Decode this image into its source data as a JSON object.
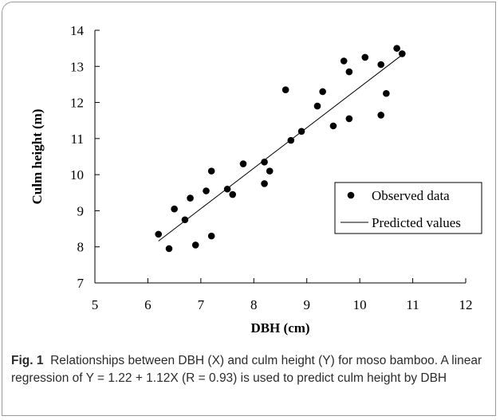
{
  "chart_data": {
    "type": "scatter",
    "title": "",
    "xlabel": "DBH (cm)",
    "ylabel": "Culm height (m)",
    "xlim": [
      5,
      12
    ],
    "ylim": [
      7,
      14
    ],
    "x_ticks": [
      5,
      6,
      7,
      8,
      9,
      10,
      11,
      12
    ],
    "y_ticks": [
      7,
      8,
      9,
      10,
      11,
      12,
      13,
      14
    ],
    "grid": false,
    "legend_position": "right",
    "series": [
      {
        "name": "Observed data",
        "kind": "points",
        "points": [
          [
            6.2,
            8.35
          ],
          [
            6.4,
            7.95
          ],
          [
            6.5,
            9.05
          ],
          [
            6.7,
            8.75
          ],
          [
            6.8,
            9.35
          ],
          [
            6.9,
            8.05
          ],
          [
            7.1,
            9.55
          ],
          [
            7.2,
            10.1
          ],
          [
            7.2,
            8.3
          ],
          [
            7.5,
            9.6
          ],
          [
            7.6,
            9.45
          ],
          [
            7.8,
            10.3
          ],
          [
            8.2,
            10.35
          ],
          [
            8.2,
            9.75
          ],
          [
            8.3,
            10.1
          ],
          [
            8.6,
            12.35
          ],
          [
            8.7,
            10.95
          ],
          [
            8.9,
            11.2
          ],
          [
            9.2,
            11.9
          ],
          [
            9.3,
            12.3
          ],
          [
            9.5,
            11.35
          ],
          [
            9.7,
            13.15
          ],
          [
            9.8,
            12.85
          ],
          [
            9.8,
            11.55
          ],
          [
            10.1,
            13.25
          ],
          [
            10.4,
            13.05
          ],
          [
            10.4,
            11.65
          ],
          [
            10.5,
            12.25
          ],
          [
            10.7,
            13.5
          ],
          [
            10.8,
            13.35
          ]
        ]
      },
      {
        "name": "Predicted values",
        "kind": "line",
        "points": [
          [
            6.2,
            8.16
          ],
          [
            10.8,
            13.32
          ]
        ]
      }
    ]
  },
  "caption": {
    "label": "Fig. 1",
    "text": "Relationships between DBH (X) and culm height (Y) for moso bamboo. A linear regression of Y = 1.22 + 1.12X (R = 0.93) is used to predict culm height by DBH"
  }
}
